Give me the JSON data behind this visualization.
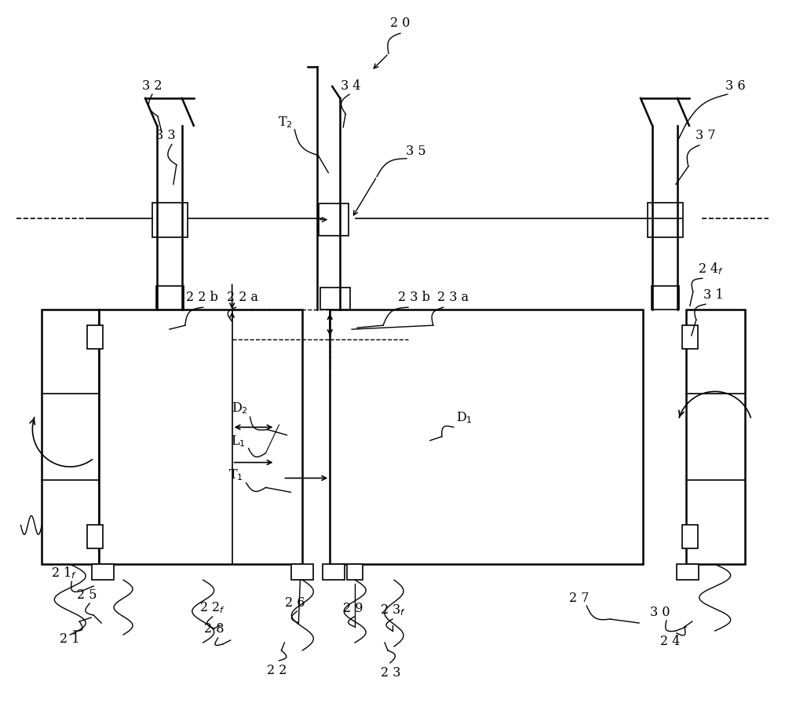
{
  "bg_color": "#ffffff",
  "line_color": "#000000",
  "fig_width": 10.0,
  "fig_height": 9.2
}
